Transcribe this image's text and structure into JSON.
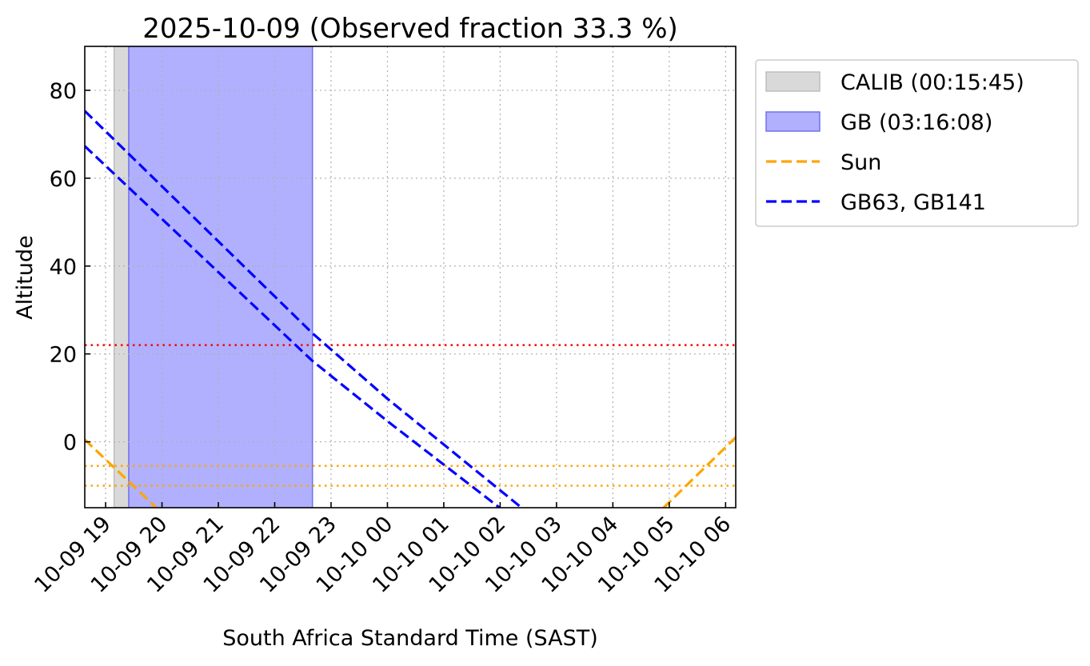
{
  "chart_data": {
    "type": "line",
    "title": "2025-10-09 (Observed fraction 33.3 %)",
    "xlabel": "South Africa Standard Time (SAST)",
    "ylabel": "Altitude",
    "xlim_hours": [
      18.63,
      30.18
    ],
    "ylim": [
      -15,
      90
    ],
    "grid": true,
    "x_ticks": [
      {
        "hour": 19,
        "label": "10-09 19"
      },
      {
        "hour": 20,
        "label": "10-09 20"
      },
      {
        "hour": 21,
        "label": "10-09 21"
      },
      {
        "hour": 22,
        "label": "10-09 22"
      },
      {
        "hour": 23,
        "label": "10-09 23"
      },
      {
        "hour": 24,
        "label": "10-10 00"
      },
      {
        "hour": 25,
        "label": "10-10 01"
      },
      {
        "hour": 26,
        "label": "10-10 02"
      },
      {
        "hour": 27,
        "label": "10-10 03"
      },
      {
        "hour": 28,
        "label": "10-10 04"
      },
      {
        "hour": 29,
        "label": "10-10 05"
      },
      {
        "hour": 30,
        "label": "10-10 06"
      }
    ],
    "y_ticks": [
      {
        "value": 0,
        "label": "0"
      },
      {
        "value": 20,
        "label": "20"
      },
      {
        "value": 40,
        "label": "40"
      },
      {
        "value": 60,
        "label": "60"
      },
      {
        "value": 80,
        "label": "80"
      }
    ],
    "spans": [
      {
        "name": "CALIB (00:15:45)",
        "start": 19.15,
        "end": 19.41,
        "color": "#d9d9d9",
        "edge": "#bdbdbd"
      },
      {
        "name": "GB (03:16:08)",
        "start": 19.41,
        "end": 22.67,
        "color": "#b0b0ff",
        "edge": "#7070ee"
      }
    ],
    "series": [
      {
        "name": "Sun",
        "color": "#ffa500",
        "segments": [
          [
            [
              18.63,
              0.5
            ],
            [
              19.9,
              -15
            ]
          ],
          [
            [
              28.9,
              -15
            ],
            [
              30.18,
              1
            ]
          ]
        ]
      },
      {
        "name": "GB63",
        "color": "#0000ff",
        "segments": [
          [
            [
              18.63,
              75.3
            ],
            [
              22.67,
              24.7
            ],
            [
              24,
              9.8
            ],
            [
              26.38,
              -15
            ]
          ]
        ]
      },
      {
        "name": "GB141",
        "color": "#0000ff",
        "segments": [
          [
            [
              18.63,
              67.3
            ],
            [
              22.67,
              18.4
            ],
            [
              24,
              4.7
            ],
            [
              25.99,
              -15
            ]
          ]
        ]
      }
    ],
    "hlines": [
      {
        "value": 22,
        "color": "#ff0000"
      },
      {
        "value": -5.5,
        "color": "#ffa500"
      },
      {
        "value": -10,
        "color": "#ffa500"
      }
    ],
    "legend": {
      "placement": "outside-top-right",
      "entries": [
        {
          "label": "CALIB (00:15:45)",
          "kind": "patch",
          "color": "#d9d9d9",
          "edge": "#bdbdbd"
        },
        {
          "label": "GB (03:16:08)",
          "kind": "patch",
          "color": "#b0b0ff",
          "edge": "#7070ee"
        },
        {
          "label": "Sun",
          "kind": "line",
          "color": "#ffa500"
        },
        {
          "label": "GB63, GB141",
          "kind": "line",
          "color": "#0000ff"
        }
      ]
    }
  }
}
